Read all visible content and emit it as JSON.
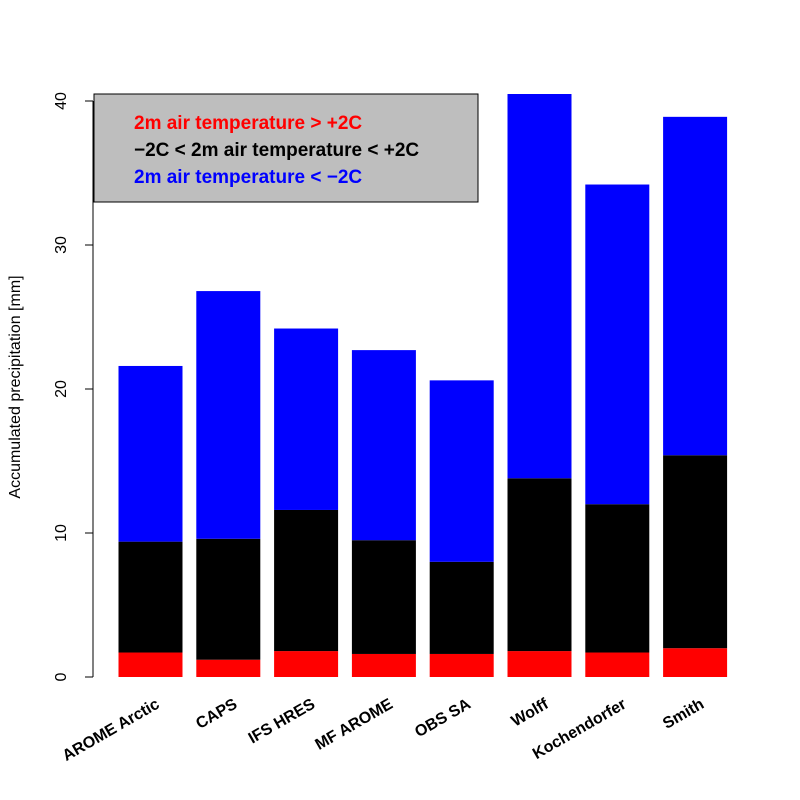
{
  "chart_data": {
    "type": "bar",
    "stacked": true,
    "categories": [
      "AROME Arctic",
      "CAPS",
      "IFS HRES",
      "MF AROME",
      "OBS SA",
      "Wolff",
      "Kochendorfer",
      "Smith"
    ],
    "series": [
      {
        "name": "2m air temperature > +2C",
        "color": "#ff0000",
        "values": [
          1.7,
          1.2,
          1.8,
          1.6,
          1.6,
          1.8,
          1.7,
          2.0
        ]
      },
      {
        "name": "−2C < 2m air temperature < +2C",
        "color": "#000000",
        "values": [
          7.7,
          8.4,
          9.8,
          7.9,
          6.4,
          12.0,
          10.3,
          13.4
        ]
      },
      {
        "name": "2m air temperature < −2C",
        "color": "#0000ff",
        "values": [
          12.2,
          17.2,
          12.6,
          13.2,
          12.6,
          26.7,
          22.2,
          23.5
        ]
      }
    ],
    "ylabel": "Accumulated precipitation [mm]",
    "xlabel": "",
    "ylim": [
      0,
      40
    ],
    "yticks": [
      0,
      10,
      20,
      30,
      40
    ],
    "legend": {
      "position": "top-left",
      "background": "#bebebe"
    },
    "grid": false
  }
}
